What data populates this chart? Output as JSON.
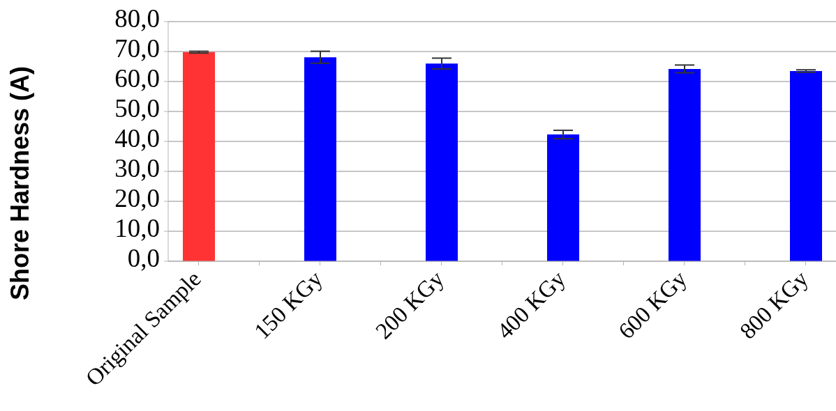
{
  "chart_data": {
    "type": "bar",
    "ylabel": "Shore Hardness (A)",
    "categories": [
      "Original Sample",
      null,
      "150 KGy",
      null,
      "200 KGy",
      null,
      "400 KGy",
      null,
      "600 KGy",
      null,
      "800 KGy"
    ],
    "values": [
      69.8,
      null,
      68.1,
      null,
      66.0,
      null,
      42.3,
      null,
      64.2,
      null,
      63.5
    ],
    "errors": [
      0.3,
      null,
      2.0,
      null,
      1.8,
      null,
      1.4,
      null,
      1.3,
      null,
      0.4
    ],
    "colors": [
      "#ff3333",
      null,
      "#0000ff",
      null,
      "#0000ff",
      null,
      "#0000ff",
      null,
      "#0000ff",
      null,
      "#0000ff"
    ],
    "ylim": [
      0,
      80
    ],
    "yticks": [
      {
        "value": 0,
        "label": "0,0"
      },
      {
        "value": 10,
        "label": "10,0"
      },
      {
        "value": 20,
        "label": "20,0"
      },
      {
        "value": 30,
        "label": "30,0"
      },
      {
        "value": 40,
        "label": "40,0"
      },
      {
        "value": 50,
        "label": "50,0"
      },
      {
        "value": 60,
        "label": "60,0"
      },
      {
        "value": 70,
        "label": "70,0"
      },
      {
        "value": 80,
        "label": "80,0"
      }
    ],
    "grid": "y",
    "legend": false
  }
}
